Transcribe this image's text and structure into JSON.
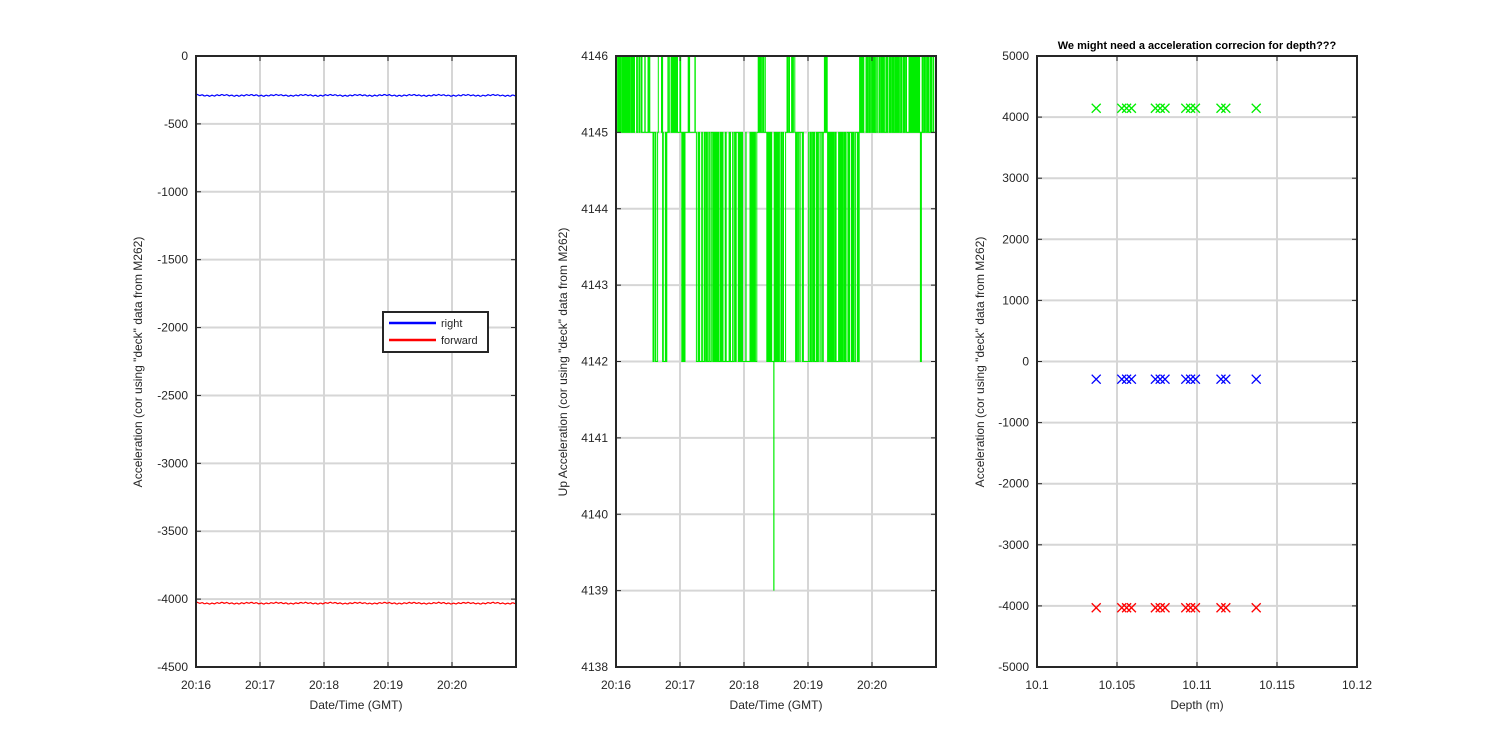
{
  "chart_data": [
    {
      "type": "line",
      "title": "",
      "xlabel": "Date/Time (GMT)",
      "ylabel": "Acceleration (cor using \"deck\" data from M262)",
      "x_ticks": [
        "20:16",
        "20:17",
        "20:18",
        "20:19",
        "20:20"
      ],
      "x_range": [
        "20:16",
        "20:21"
      ],
      "ylim": [
        -4500,
        0
      ],
      "y_ticks": [
        0,
        -500,
        -1000,
        -1500,
        -2000,
        -2500,
        -3000,
        -3500,
        -4000,
        -4500
      ],
      "grid": true,
      "legend": {
        "placement": "center-right",
        "entries": [
          "right",
          "forward"
        ]
      },
      "series": [
        {
          "name": "right",
          "color": "#0000ff",
          "approx_value": -290,
          "x": [
            "20:16",
            "20:21"
          ],
          "values": [
            -290,
            -290
          ]
        },
        {
          "name": "forward",
          "color": "#ff0000",
          "approx_value": -4030,
          "x": [
            "20:16",
            "20:21"
          ],
          "values": [
            -4030,
            -4030
          ]
        }
      ]
    },
    {
      "type": "line",
      "title": "",
      "xlabel": "Date/Time (GMT)",
      "ylabel": "Up Acceleration (cor using \"deck\" data from M262)",
      "x_ticks": [
        "20:16",
        "20:17",
        "20:18",
        "20:19",
        "20:20"
      ],
      "x_range": [
        "20:16",
        "20:21"
      ],
      "ylim": [
        4138,
        4146
      ],
      "y_ticks": [
        4138,
        4139,
        4140,
        4141,
        4142,
        4143,
        4144,
        4145,
        4146
      ],
      "grid": true,
      "series": [
        {
          "color": "#00ee00",
          "description_levels": [
            4145,
            4146,
            4142
          ],
          "min_value": 4139,
          "min_time": "20:18:28"
        }
      ]
    },
    {
      "type": "scatter",
      "title": "We might need a acceleration correcion for depth???",
      "xlabel": "Depth (m)",
      "ylabel": "Acceleration (cor using \"deck\" data from M262)",
      "xlim": [
        10.1,
        10.12
      ],
      "x_ticks": [
        10.1,
        10.105,
        10.11,
        10.115,
        10.12
      ],
      "ylim": [
        -5000,
        5000
      ],
      "y_ticks": [
        5000,
        4000,
        3000,
        2000,
        1000,
        0,
        -1000,
        -2000,
        -3000,
        -4000,
        -5000
      ],
      "grid": true,
      "marker": "x",
      "depths": [
        10.1037,
        10.1053,
        10.1056,
        10.1059,
        10.1074,
        10.1077,
        10.108,
        10.1093,
        10.1096,
        10.1099,
        10.1115,
        10.1118,
        10.1137
      ],
      "series": [
        {
          "color": "#00ee00",
          "values": [
            4145,
            4145,
            4145,
            4145,
            4145,
            4145,
            4145,
            4145,
            4145,
            4145,
            4145,
            4145,
            4145
          ]
        },
        {
          "color": "#0000ff",
          "values": [
            -290,
            -290,
            -290,
            -290,
            -290,
            -290,
            -290,
            -290,
            -290,
            -290,
            -290,
            -290,
            -290
          ]
        },
        {
          "color": "#ff0000",
          "values": [
            -4030,
            -4030,
            -4030,
            -4030,
            -4030,
            -4030,
            -4030,
            -4030,
            -4030,
            -4030,
            -4030,
            -4030,
            -4030
          ]
        }
      ]
    }
  ]
}
